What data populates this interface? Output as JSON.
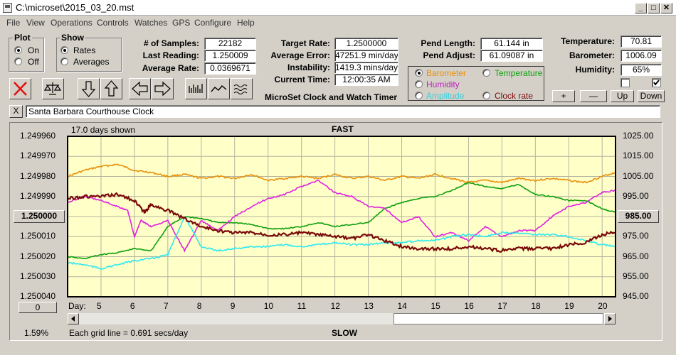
{
  "window": {
    "title": "C:\\microset\\2015_03_20.mst",
    "min": "_",
    "max": "□",
    "close": "✕"
  },
  "menu": [
    "File",
    "View",
    "Operations",
    "Controls",
    "Watches",
    "GPS",
    "Configure",
    "Help"
  ],
  "plot_group": {
    "title": "Plot",
    "on": "On",
    "off": "Off",
    "selected": "On"
  },
  "show_group": {
    "title": "Show",
    "rates": "Rates",
    "averages": "Averages",
    "selected": "Rates"
  },
  "stats1": {
    "samples_label": "# of Samples:",
    "samples": "22182",
    "last_label": "Last Reading:",
    "last": "1.250009",
    "avg_label": "Average Rate:",
    "avg": "0.0369671"
  },
  "stats2": {
    "target_label": "Target Rate:",
    "target": "1.2500000",
    "err_label": "Average Error:",
    "err": "47251.9 min/day",
    "inst_label": "Instability:",
    "inst": "1419.3 mins/day",
    "time_label": "Current Time:",
    "time": "12:00:35 AM",
    "product": "MicroSet Clock and Watch Timer"
  },
  "pend": {
    "len_label": "Pend Length:",
    "len": "61.144 in",
    "adj_label": "Pend Adjust:",
    "adj": "61.09087 in"
  },
  "env": {
    "temp_label": "Temperature:",
    "temp": "70.81",
    "baro_label": "Barometer:",
    "baro": "1006.09",
    "hum_label": "Humidity:",
    "hum": "65%"
  },
  "right_series": {
    "barometer": "Barometer",
    "temperature": "Temperature",
    "humidity": "Humidity",
    "amplitude": "Amplitude",
    "clock_rate": "Clock rate",
    "selected": "Barometer"
  },
  "env_buttons": {
    "plus": "+",
    "minus": "—",
    "up": "Up",
    "down": "Down"
  },
  "description_clear": "X",
  "description": "Santa Barbara Courthouse Clock",
  "chart_labels": {
    "days_shown": "17.0 days shown",
    "top": "FAST",
    "bottom": "SLOW",
    "grid_note": "Each grid line = 0.691 secs/day",
    "percent": "1.59%",
    "day_label": "Day:",
    "left_button": "1.250000",
    "right_button": "985.00",
    "zero_button": "0"
  },
  "colors": {
    "plot_bg": "#ffffc8",
    "barometer": "#e8900c",
    "temperature": "#10a010",
    "humidity": "#e020e0",
    "amplitude": "#30e8f0",
    "clock_rate": "#7a0a0a"
  },
  "chart_data": {
    "type": "line",
    "xlabel": "Day:",
    "x_ticks": [
      5,
      6,
      7,
      8,
      9,
      10,
      11,
      12,
      13,
      14,
      15,
      16,
      17,
      18,
      19,
      20
    ],
    "xlim": [
      4.0,
      20.4
    ],
    "y_left": {
      "ticks": [
        "1.249960",
        "1.249970",
        "1.249980",
        "1.249990",
        "1.250000",
        "1.250010",
        "1.250020",
        "1.250030",
        "1.250040"
      ],
      "range": [
        1.24996,
        1.25004
      ],
      "inverted": true
    },
    "y_right": {
      "ticks": [
        "1025.00",
        "1015.00",
        "1005.00",
        "995.00",
        "985.00",
        "975.00",
        "965.00",
        "955.00",
        "945.00"
      ],
      "range": [
        945,
        1025
      ]
    },
    "series": [
      {
        "name": "Barometer",
        "axis": "right",
        "x": [
          4,
          4.5,
          5,
          5.5,
          6,
          6.5,
          7,
          7.5,
          8,
          8.5,
          9,
          9.5,
          10,
          10.5,
          11,
          11.5,
          12,
          12.5,
          13,
          13.5,
          14,
          14.5,
          15,
          15.5,
          16,
          16.5,
          17,
          17.5,
          18,
          18.5,
          19,
          19.5,
          20,
          20.4
        ],
        "y": [
          1005,
          1008,
          1010,
          1011,
          1008,
          1007,
          1005,
          1006,
          1004,
          1005,
          1004,
          1006,
          1003,
          1004,
          1005,
          1004,
          1006,
          1004,
          1005,
          1003,
          1005,
          1004,
          1006,
          1004,
          1002,
          1003,
          1002,
          1004,
          1003,
          1004,
          1003,
          1002,
          1005,
          1007
        ]
      },
      {
        "name": "Temperature",
        "axis": "right",
        "x": [
          4,
          4.5,
          5,
          5.5,
          6,
          6.5,
          7,
          7.5,
          8,
          8.5,
          9,
          9.5,
          10,
          10.5,
          11,
          11.5,
          12,
          12.5,
          13,
          13.5,
          14,
          14.5,
          15,
          15.5,
          16,
          16.5,
          17,
          17.5,
          18,
          18.5,
          19,
          19.5,
          20,
          20.4
        ],
        "y": [
          965,
          964,
          966,
          967,
          969,
          968,
          980,
          985,
          984,
          982,
          982,
          981,
          979,
          979,
          980,
          982,
          980,
          981,
          982,
          989,
          992,
          994,
          995,
          998,
          1002,
          1000,
          999,
          1001,
          996,
          995,
          993,
          993,
          989,
          987
        ]
      },
      {
        "name": "Humidity",
        "axis": "right",
        "x": [
          4,
          4.5,
          5,
          5.5,
          5.8,
          6,
          6.2,
          6.5,
          7,
          7.5,
          8,
          8.5,
          9,
          9.5,
          10,
          10.5,
          11,
          11.5,
          12,
          12.5,
          13,
          13.5,
          14,
          14.5,
          15,
          15.5,
          16,
          16.5,
          17,
          17.5,
          18,
          18.5,
          19,
          19.5,
          20,
          20.4
        ],
        "y": [
          992,
          995,
          993,
          990,
          988,
          975,
          983,
          980,
          983,
          968,
          983,
          978,
          985,
          990,
          994,
          996,
          1000,
          1003,
          997,
          995,
          990,
          989,
          982,
          985,
          975,
          977,
          973,
          980,
          975,
          978,
          978,
          985,
          990,
          992,
          997,
          998
        ]
      },
      {
        "name": "Amplitude",
        "axis": "right",
        "x": [
          4,
          4.5,
          5,
          5.5,
          6,
          6.5,
          7,
          7.5,
          8,
          8.5,
          9,
          9.5,
          10,
          10.5,
          11,
          11.5,
          12,
          12.5,
          13,
          13.5,
          14,
          14.5,
          15,
          15.5,
          16,
          16.5,
          17,
          17.5,
          18,
          18.5,
          19,
          19.5,
          20,
          20.4
        ],
        "y": [
          962,
          961,
          959,
          961,
          963,
          964,
          966,
          985,
          970,
          968,
          969,
          970,
          970,
          971,
          970,
          971,
          972,
          971,
          971,
          972,
          972,
          973,
          973,
          975,
          976,
          975,
          977,
          977,
          976,
          976,
          975,
          973,
          971,
          970
        ]
      },
      {
        "name": "Clock rate",
        "axis": "left",
        "x": [
          4,
          4.5,
          5,
          5.5,
          6,
          6.3,
          6.5,
          7,
          7.5,
          8,
          8.5,
          9,
          9.5,
          10,
          10.5,
          11,
          11.5,
          12,
          12.5,
          13,
          13.5,
          14,
          14.5,
          15,
          15.5,
          16,
          16.5,
          17,
          17.5,
          18,
          18.5,
          19,
          19.5,
          20,
          20.4
        ],
        "y": [
          1.249991,
          1.24999,
          1.24999,
          1.249989,
          1.249992,
          1.249998,
          1.249994,
          1.249997,
          1.250001,
          1.250005,
          1.250007,
          1.250008,
          1.250008,
          1.250009,
          1.250009,
          1.250008,
          1.250009,
          1.25001,
          1.250011,
          1.250009,
          1.250012,
          1.250015,
          1.250016,
          1.250016,
          1.250016,
          1.250015,
          1.250016,
          1.250017,
          1.250016,
          1.250016,
          1.250016,
          1.250014,
          1.250013,
          1.250009,
          1.250008
        ]
      }
    ]
  }
}
